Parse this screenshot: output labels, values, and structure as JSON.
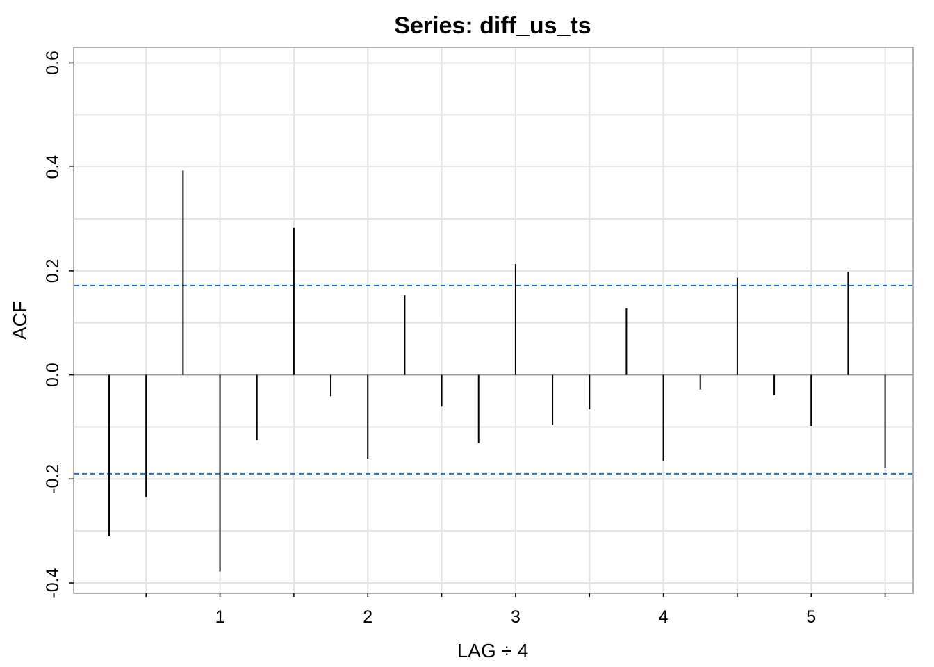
{
  "chart_data": {
    "type": "bar",
    "title": "Series:  diff_us_ts",
    "xlabel": "LAG ÷ 4",
    "ylabel": "ACF",
    "xlim": [
      0.01,
      5.69
    ],
    "ylim": [
      -0.42,
      0.63
    ],
    "x_ticks": [
      1,
      2,
      3,
      4,
      5
    ],
    "y_ticks": [
      -0.4,
      -0.2,
      0.0,
      0.2,
      0.4,
      0.6
    ],
    "x_tick_labels": [
      "1",
      "2",
      "3",
      "4",
      "5"
    ],
    "y_tick_labels": [
      "-0.4",
      "-0.2",
      "0.0",
      "0.2",
      "0.4",
      "0.6"
    ],
    "grid": true,
    "lag": [
      0.25,
      0.5,
      0.75,
      1.0,
      1.25,
      1.5,
      1.75,
      2.0,
      2.25,
      2.5,
      2.75,
      3.0,
      3.25,
      3.5,
      3.75,
      4.0,
      4.25,
      4.5,
      4.75,
      5.0,
      5.25,
      5.5
    ],
    "acf": [
      -0.31,
      -0.235,
      0.393,
      -0.378,
      -0.126,
      0.283,
      -0.041,
      -0.161,
      0.153,
      -0.061,
      -0.131,
      0.213,
      -0.096,
      -0.066,
      0.128,
      -0.165,
      -0.028,
      0.187,
      -0.039,
      -0.098,
      0.198,
      -0.178
    ],
    "confidence_bounds": {
      "upper": 0.172,
      "lower": -0.19
    },
    "colors": {
      "bars": "#000000",
      "bounds": "#1f6fc5",
      "grid": "#e3e3e3",
      "frame": "#999999",
      "zero_line": "#999999"
    }
  }
}
